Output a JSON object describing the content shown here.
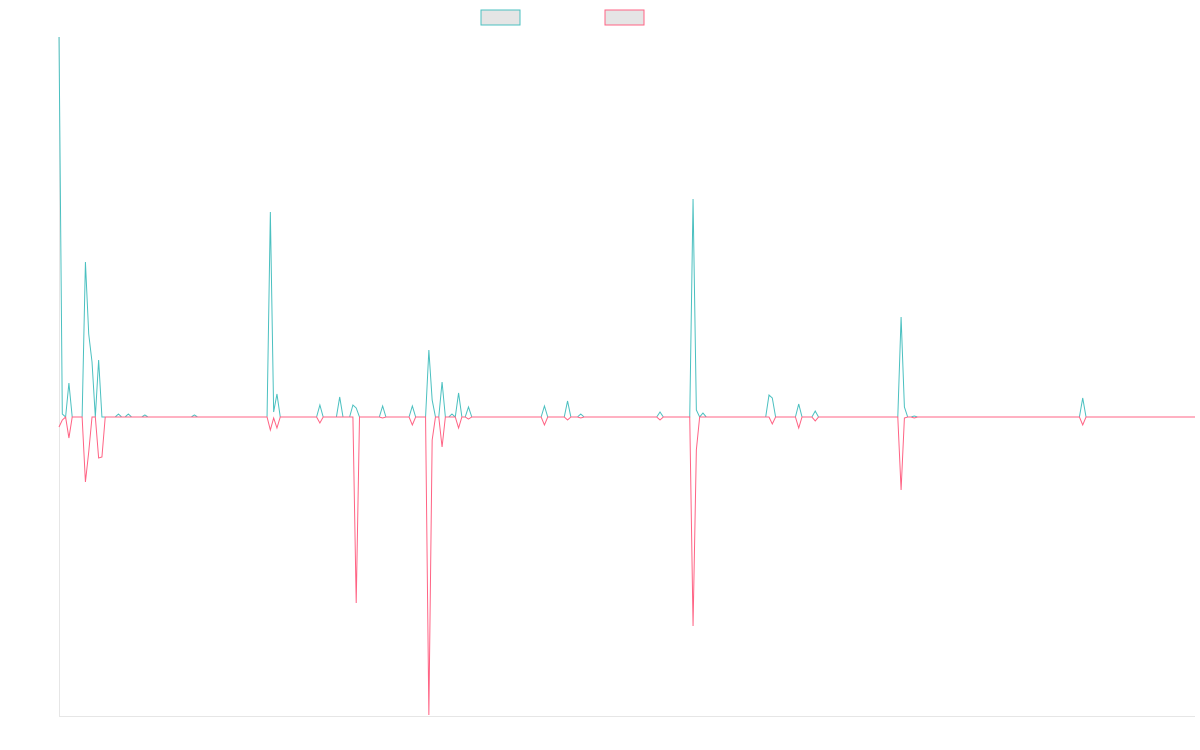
{
  "chart_data": {
    "type": "line",
    "title": "",
    "xlabel": "",
    "ylabel": "",
    "point_count": 345,
    "ylim": [
      -299,
      380
    ],
    "grid": false,
    "legend_position": "top-center",
    "series": [
      {
        "name": "",
        "color": "#4bc0c0",
        "points": [
          [
            0,
            380
          ],
          [
            1,
            3
          ],
          [
            3,
            34
          ],
          [
            8,
            155
          ],
          [
            9,
            83
          ],
          [
            10,
            55
          ],
          [
            12,
            57
          ],
          [
            18,
            3
          ],
          [
            21,
            3
          ],
          [
            26,
            2
          ],
          [
            41,
            2
          ],
          [
            64,
            205
          ],
          [
            65,
            5
          ],
          [
            66,
            23
          ],
          [
            79,
            12
          ],
          [
            85,
            20
          ],
          [
            89,
            12
          ],
          [
            90,
            9
          ],
          [
            98,
            11
          ],
          [
            107,
            11
          ],
          [
            112,
            67
          ],
          [
            113,
            17
          ],
          [
            116,
            35
          ],
          [
            119,
            3
          ],
          [
            121,
            24
          ],
          [
            124,
            10
          ],
          [
            147,
            11
          ],
          [
            154,
            16
          ],
          [
            158,
            3
          ],
          [
            182,
            5
          ],
          [
            192,
            218
          ],
          [
            193,
            7
          ],
          [
            195,
            4
          ],
          [
            215,
            22
          ],
          [
            216,
            19
          ],
          [
            224,
            13
          ],
          [
            229,
            6
          ],
          [
            255,
            100
          ],
          [
            256,
            10
          ],
          [
            259,
            1
          ],
          [
            310,
            19
          ]
        ]
      },
      {
        "name": "",
        "color": "#ff6384",
        "points": [
          [
            0,
            -10
          ],
          [
            1,
            -3
          ],
          [
            3,
            -21
          ],
          [
            8,
            -65
          ],
          [
            9,
            -35
          ],
          [
            12,
            -41
          ],
          [
            13,
            -40
          ],
          [
            64,
            -13
          ],
          [
            65,
            -1
          ],
          [
            66,
            -11
          ],
          [
            79,
            -6
          ],
          [
            90,
            -186
          ],
          [
            98,
            -1
          ],
          [
            107,
            -8
          ],
          [
            112,
            -298
          ],
          [
            113,
            -23
          ],
          [
            116,
            -30
          ],
          [
            121,
            -11
          ],
          [
            124,
            -2
          ],
          [
            147,
            -8
          ],
          [
            154,
            -3
          ],
          [
            158,
            -1
          ],
          [
            182,
            -3
          ],
          [
            192,
            -209
          ],
          [
            193,
            -33
          ],
          [
            216,
            -7
          ],
          [
            224,
            -11
          ],
          [
            229,
            -4
          ],
          [
            255,
            -73
          ],
          [
            256,
            -1
          ],
          [
            259,
            -1
          ],
          [
            310,
            -8
          ]
        ]
      }
    ]
  },
  "legend_fill": "#e5e5e5",
  "axis_color": "#e6e6e6"
}
